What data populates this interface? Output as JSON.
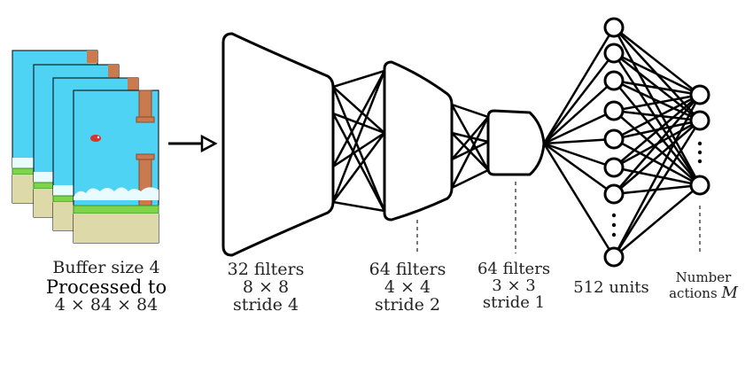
{
  "labels": {
    "buffer": {
      "line1": "Buffer size 4",
      "line2": "Processed to",
      "line3": "4 × 84 × 84"
    },
    "conv1": {
      "line1": "32 filters",
      "line2": "8 × 8",
      "line3": "stride 4"
    },
    "conv2": {
      "line1": "64 filters",
      "line2": "4 × 4",
      "line3": "stride 2"
    },
    "conv3": {
      "line1": "64 filters",
      "line2": "3 × 3",
      "line3": "stride 1"
    },
    "dense": {
      "line1": "512 units"
    },
    "output": {
      "line1": "Number",
      "line2": "actions",
      "var": "M"
    }
  },
  "colors": {
    "sky": "#4fd3f5",
    "cloud": "#e9fbff",
    "grass": "#7fd44a",
    "grass_dark": "#3d8f2a",
    "ground": "#ddd9a8",
    "pipe": "#c97a4f",
    "pipe_dark": "#8d4a2a",
    "bird": "#d9342b",
    "stroke": "#000000",
    "dashed": "#777777"
  }
}
